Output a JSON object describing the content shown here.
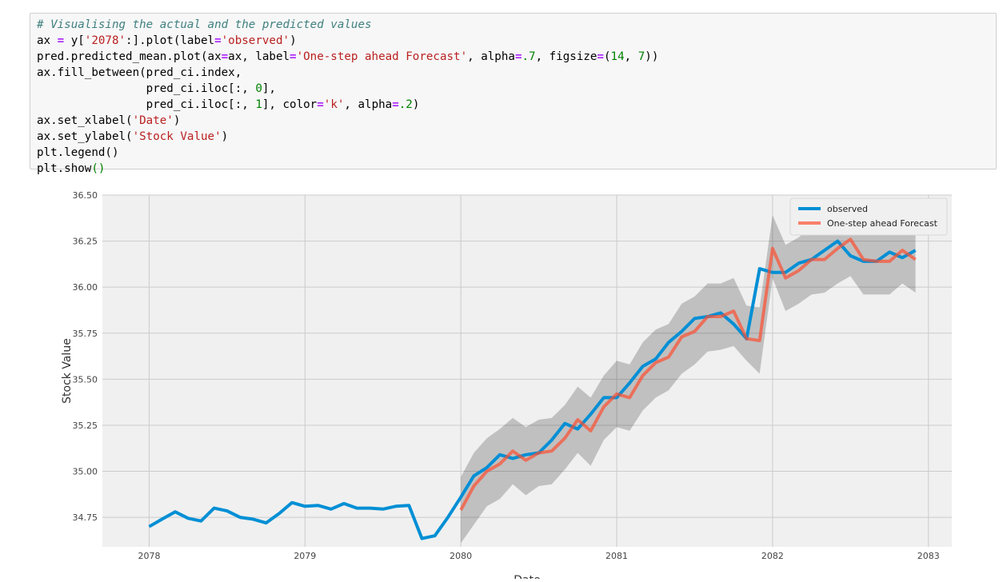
{
  "code": {
    "comment": "# Visualising the actual and the predicted values",
    "l2_a": "ax ",
    "l2_eq": "=",
    "l2_b": " y[",
    "l2_s1": "'2078'",
    "l2_c": ":].plot(label",
    "l2_eq2": "=",
    "l2_s2": "'observed'",
    "l2_d": ")",
    "l3_a": "pred.predicted_mean.plot(ax",
    "l3_eq1": "=",
    "l3_b": "ax, label",
    "l3_eq2": "=",
    "l3_s1": "'One-step ahead Forecast'",
    "l3_c": ", alpha",
    "l3_eq3": "=",
    "l3_n1": ".7",
    "l3_d": ", figsize",
    "l3_eq4": "=",
    "l3_e": "(",
    "l3_n2": "14",
    "l3_f": ", ",
    "l3_n3": "7",
    "l3_g": "))",
    "l4": "ax.fill_between(pred_ci.index,",
    "l5_a": "                pred_ci.iloc[:, ",
    "l5_n": "0",
    "l5_b": "],",
    "l6_a": "                pred_ci.iloc[:, ",
    "l6_n": "1",
    "l6_b": "], color",
    "l6_eq": "=",
    "l6_s": "'k'",
    "l6_c": ", alpha",
    "l6_eq2": "=",
    "l6_n2": ".2",
    "l6_d": ")",
    "l7_a": "ax.set_xlabel(",
    "l7_s": "'Date'",
    "l7_b": ")",
    "l8_a": "ax.set_ylabel(",
    "l8_s": "'Stock Value'",
    "l8_b": ")",
    "l9": "plt.legend()",
    "l10_a": "plt.show",
    "l10_b": "()"
  },
  "chart_data": {
    "type": "line",
    "xlabel": "Date",
    "ylabel": "Stock Value",
    "x_ticks": [
      "2078",
      "2079",
      "2080",
      "2081",
      "2082",
      "2083"
    ],
    "y_ticks": [
      "34.75",
      "35.00",
      "35.25",
      "35.50",
      "35.75",
      "36.00",
      "36.25",
      "36.50"
    ],
    "xlim": [
      2077.7,
      2083.15
    ],
    "ylim": [
      34.59,
      36.5
    ],
    "grid": true,
    "legend_position": "top-right",
    "series": [
      {
        "name": "observed",
        "color": "#008fd5",
        "x": [
          2078.0,
          2078.083,
          2078.167,
          2078.25,
          2078.333,
          2078.417,
          2078.5,
          2078.583,
          2078.667,
          2078.75,
          2078.833,
          2078.917,
          2079.0,
          2079.083,
          2079.167,
          2079.25,
          2079.333,
          2079.417,
          2079.5,
          2079.583,
          2079.667,
          2079.75,
          2079.833,
          2079.917,
          2080.0,
          2080.083,
          2080.167,
          2080.25,
          2080.333,
          2080.417,
          2080.5,
          2080.583,
          2080.667,
          2080.75,
          2080.833,
          2080.917,
          2081.0,
          2081.083,
          2081.167,
          2081.25,
          2081.333,
          2081.417,
          2081.5,
          2081.583,
          2081.667,
          2081.75,
          2081.833,
          2081.917,
          2082.0,
          2082.083,
          2082.167,
          2082.25,
          2082.333,
          2082.417,
          2082.5,
          2082.583,
          2082.667,
          2082.75,
          2082.833,
          2082.917
        ],
        "values": [
          34.7,
          34.74,
          34.78,
          34.745,
          34.73,
          34.8,
          34.785,
          34.75,
          34.74,
          34.72,
          34.77,
          34.83,
          34.81,
          34.815,
          34.795,
          34.825,
          34.8,
          34.8,
          34.795,
          34.81,
          34.815,
          34.635,
          34.65,
          34.75,
          34.86,
          34.975,
          35.02,
          35.09,
          35.07,
          35.09,
          35.1,
          35.17,
          35.26,
          35.23,
          35.31,
          35.4,
          35.4,
          35.48,
          35.57,
          35.61,
          35.7,
          35.76,
          35.83,
          35.84,
          35.86,
          35.8,
          35.72,
          36.1,
          36.08,
          36.08,
          36.13,
          36.15,
          36.2,
          36.25,
          36.17,
          36.14,
          36.14,
          36.19,
          36.16,
          36.2
        ]
      },
      {
        "name": "One-step ahead Forecast",
        "color": "#fc4f30",
        "x": [
          2080.0,
          2080.083,
          2080.167,
          2080.25,
          2080.333,
          2080.417,
          2080.5,
          2080.583,
          2080.667,
          2080.75,
          2080.833,
          2080.917,
          2081.0,
          2081.083,
          2081.167,
          2081.25,
          2081.333,
          2081.417,
          2081.5,
          2081.583,
          2081.667,
          2081.75,
          2081.833,
          2081.917,
          2082.0,
          2082.083,
          2082.167,
          2082.25,
          2082.333,
          2082.417,
          2082.5,
          2082.583,
          2082.667,
          2082.75,
          2082.833,
          2082.917
        ],
        "values": [
          34.79,
          34.92,
          35.0,
          35.04,
          35.11,
          35.06,
          35.1,
          35.11,
          35.18,
          35.28,
          35.22,
          35.35,
          35.42,
          35.4,
          35.52,
          35.59,
          35.62,
          35.73,
          35.76,
          35.84,
          35.84,
          35.87,
          35.72,
          35.71,
          36.21,
          36.05,
          36.09,
          36.15,
          36.15,
          36.21,
          36.26,
          36.15,
          36.14,
          36.14,
          36.2,
          36.15
        ]
      }
    ],
    "confidence_band": {
      "color": "#000000",
      "alpha": 0.2,
      "x": [
        2080.0,
        2080.083,
        2080.167,
        2080.25,
        2080.333,
        2080.417,
        2080.5,
        2080.583,
        2080.667,
        2080.75,
        2080.833,
        2080.917,
        2081.0,
        2081.083,
        2081.167,
        2081.25,
        2081.333,
        2081.417,
        2081.5,
        2081.583,
        2081.667,
        2081.75,
        2081.833,
        2081.917,
        2082.0,
        2082.083,
        2082.167,
        2082.25,
        2082.333,
        2082.417,
        2082.5,
        2082.583,
        2082.667,
        2082.75,
        2082.833,
        2082.917
      ],
      "lower": [
        34.61,
        34.71,
        34.81,
        34.85,
        34.93,
        34.87,
        34.92,
        34.93,
        35.01,
        35.1,
        35.03,
        35.17,
        35.24,
        35.22,
        35.33,
        35.4,
        35.44,
        35.53,
        35.58,
        35.65,
        35.66,
        35.68,
        35.6,
        35.53,
        36.05,
        35.87,
        35.91,
        35.96,
        35.97,
        36.02,
        36.06,
        35.96,
        35.96,
        35.96,
        36.02,
        35.97
      ],
      "upper": [
        34.97,
        35.1,
        35.18,
        35.23,
        35.29,
        35.24,
        35.28,
        35.29,
        35.36,
        35.46,
        35.4,
        35.52,
        35.6,
        35.58,
        35.7,
        35.77,
        35.8,
        35.91,
        35.95,
        36.02,
        36.02,
        36.05,
        35.9,
        35.89,
        36.39,
        36.23,
        36.27,
        36.33,
        36.33,
        36.39,
        36.44,
        36.33,
        36.32,
        36.32,
        36.38,
        36.33
      ]
    }
  }
}
